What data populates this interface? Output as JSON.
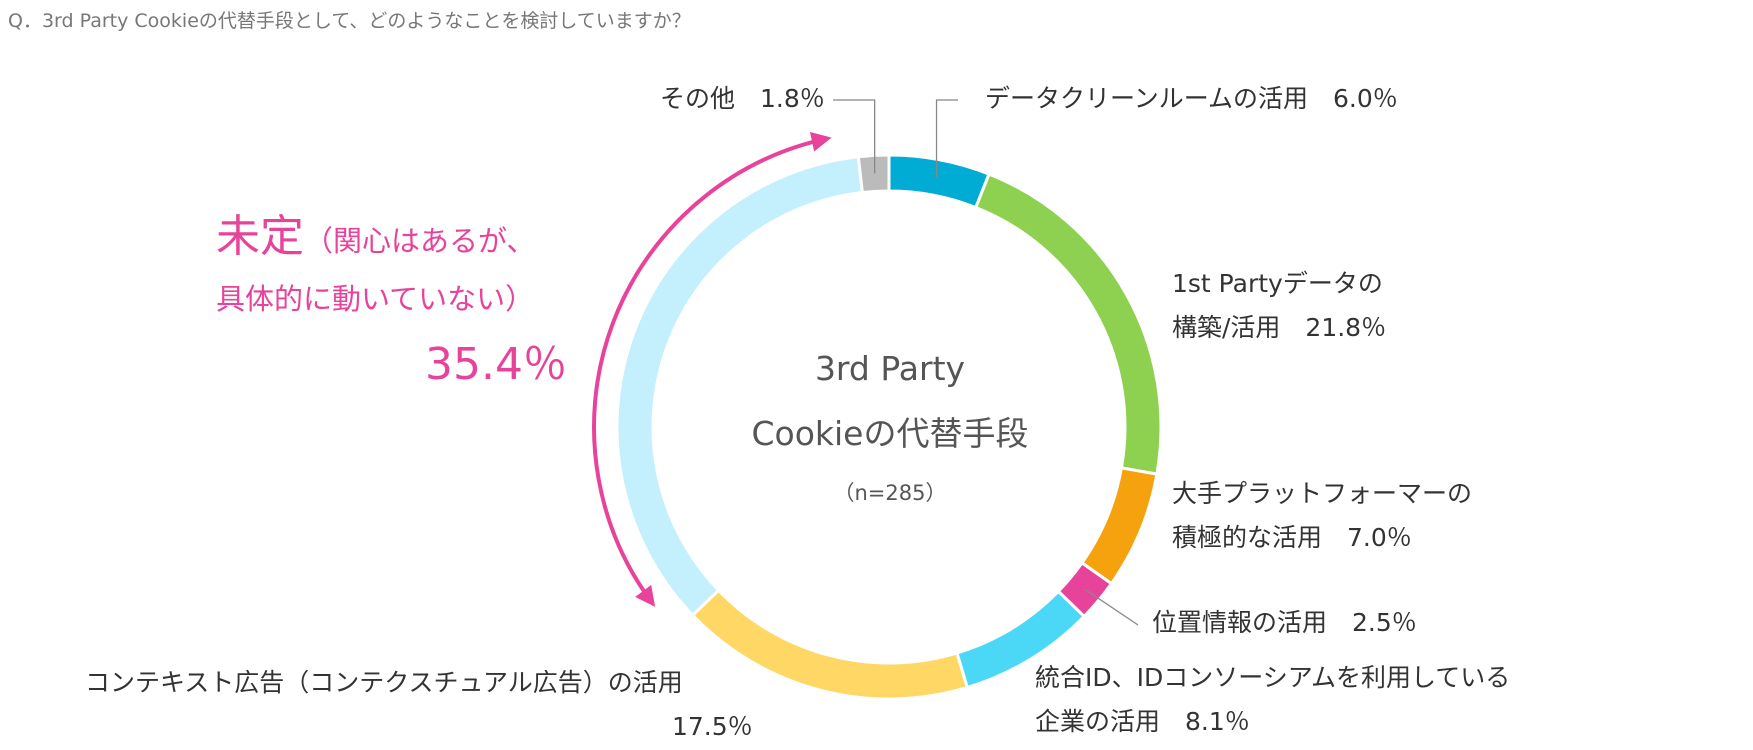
{
  "question": "Q．3rd Party Cookieの代替手段として、どのようなことを検討していますか？",
  "center": {
    "line1": "3rd Party",
    "line2": "Cookieの代替手段",
    "n": "（n=285）"
  },
  "undecided_callout": {
    "big": "未定",
    "paren1": "（関心はあるが、",
    "paren2": "具体的に動いていない）",
    "value": "35.4％"
  },
  "labels": {
    "other": "その他　1.8％",
    "dataclean": "データクリーンルームの活用　6.0％",
    "firstparty_1": "1st Partyデータの",
    "firstparty_2": "構築/活用　21.8％",
    "platform_1": "大手プラットフォーマーの",
    "platform_2": "積極的な活用　7.0％",
    "location": "位置情報の活用　2.5％",
    "unified_1": "統合ID、IDコンソーシアムを利用している",
    "unified_2": "企業の活用　8.1％",
    "context_1": "コンテキスト広告（コンテクスチュアル広告）の活用",
    "context_2": "17.5％"
  },
  "chart_data": {
    "type": "donut",
    "n": 285,
    "segments": [
      {
        "label": "データクリーンルームの活用",
        "value": 6.0,
        "color": "#00acd4"
      },
      {
        "label": "1st Partyデータの構築/活用",
        "value": 21.8,
        "color": "#8ed04f"
      },
      {
        "label": "大手プラットフォーマーの積極的な活用",
        "value": 7.0,
        "color": "#f6a20f"
      },
      {
        "label": "位置情報の活用",
        "value": 2.5,
        "color": "#e8439b"
      },
      {
        "label": "統合ID、IDコンソーシアムを利用している企業の活用",
        "value": 8.1,
        "color": "#4bd8f7"
      },
      {
        "label": "コンテキスト広告（コンテクスチュアル広告）の活用",
        "value": 17.5,
        "color": "#fed765"
      },
      {
        "label": "未定（関心はあるが、具体的に動いていない）",
        "value": 35.4,
        "color": "#c3f0fc"
      },
      {
        "label": "その他",
        "value": 1.8,
        "color": "#bbbbbb"
      }
    ],
    "accent_color": "#e8439b"
  }
}
